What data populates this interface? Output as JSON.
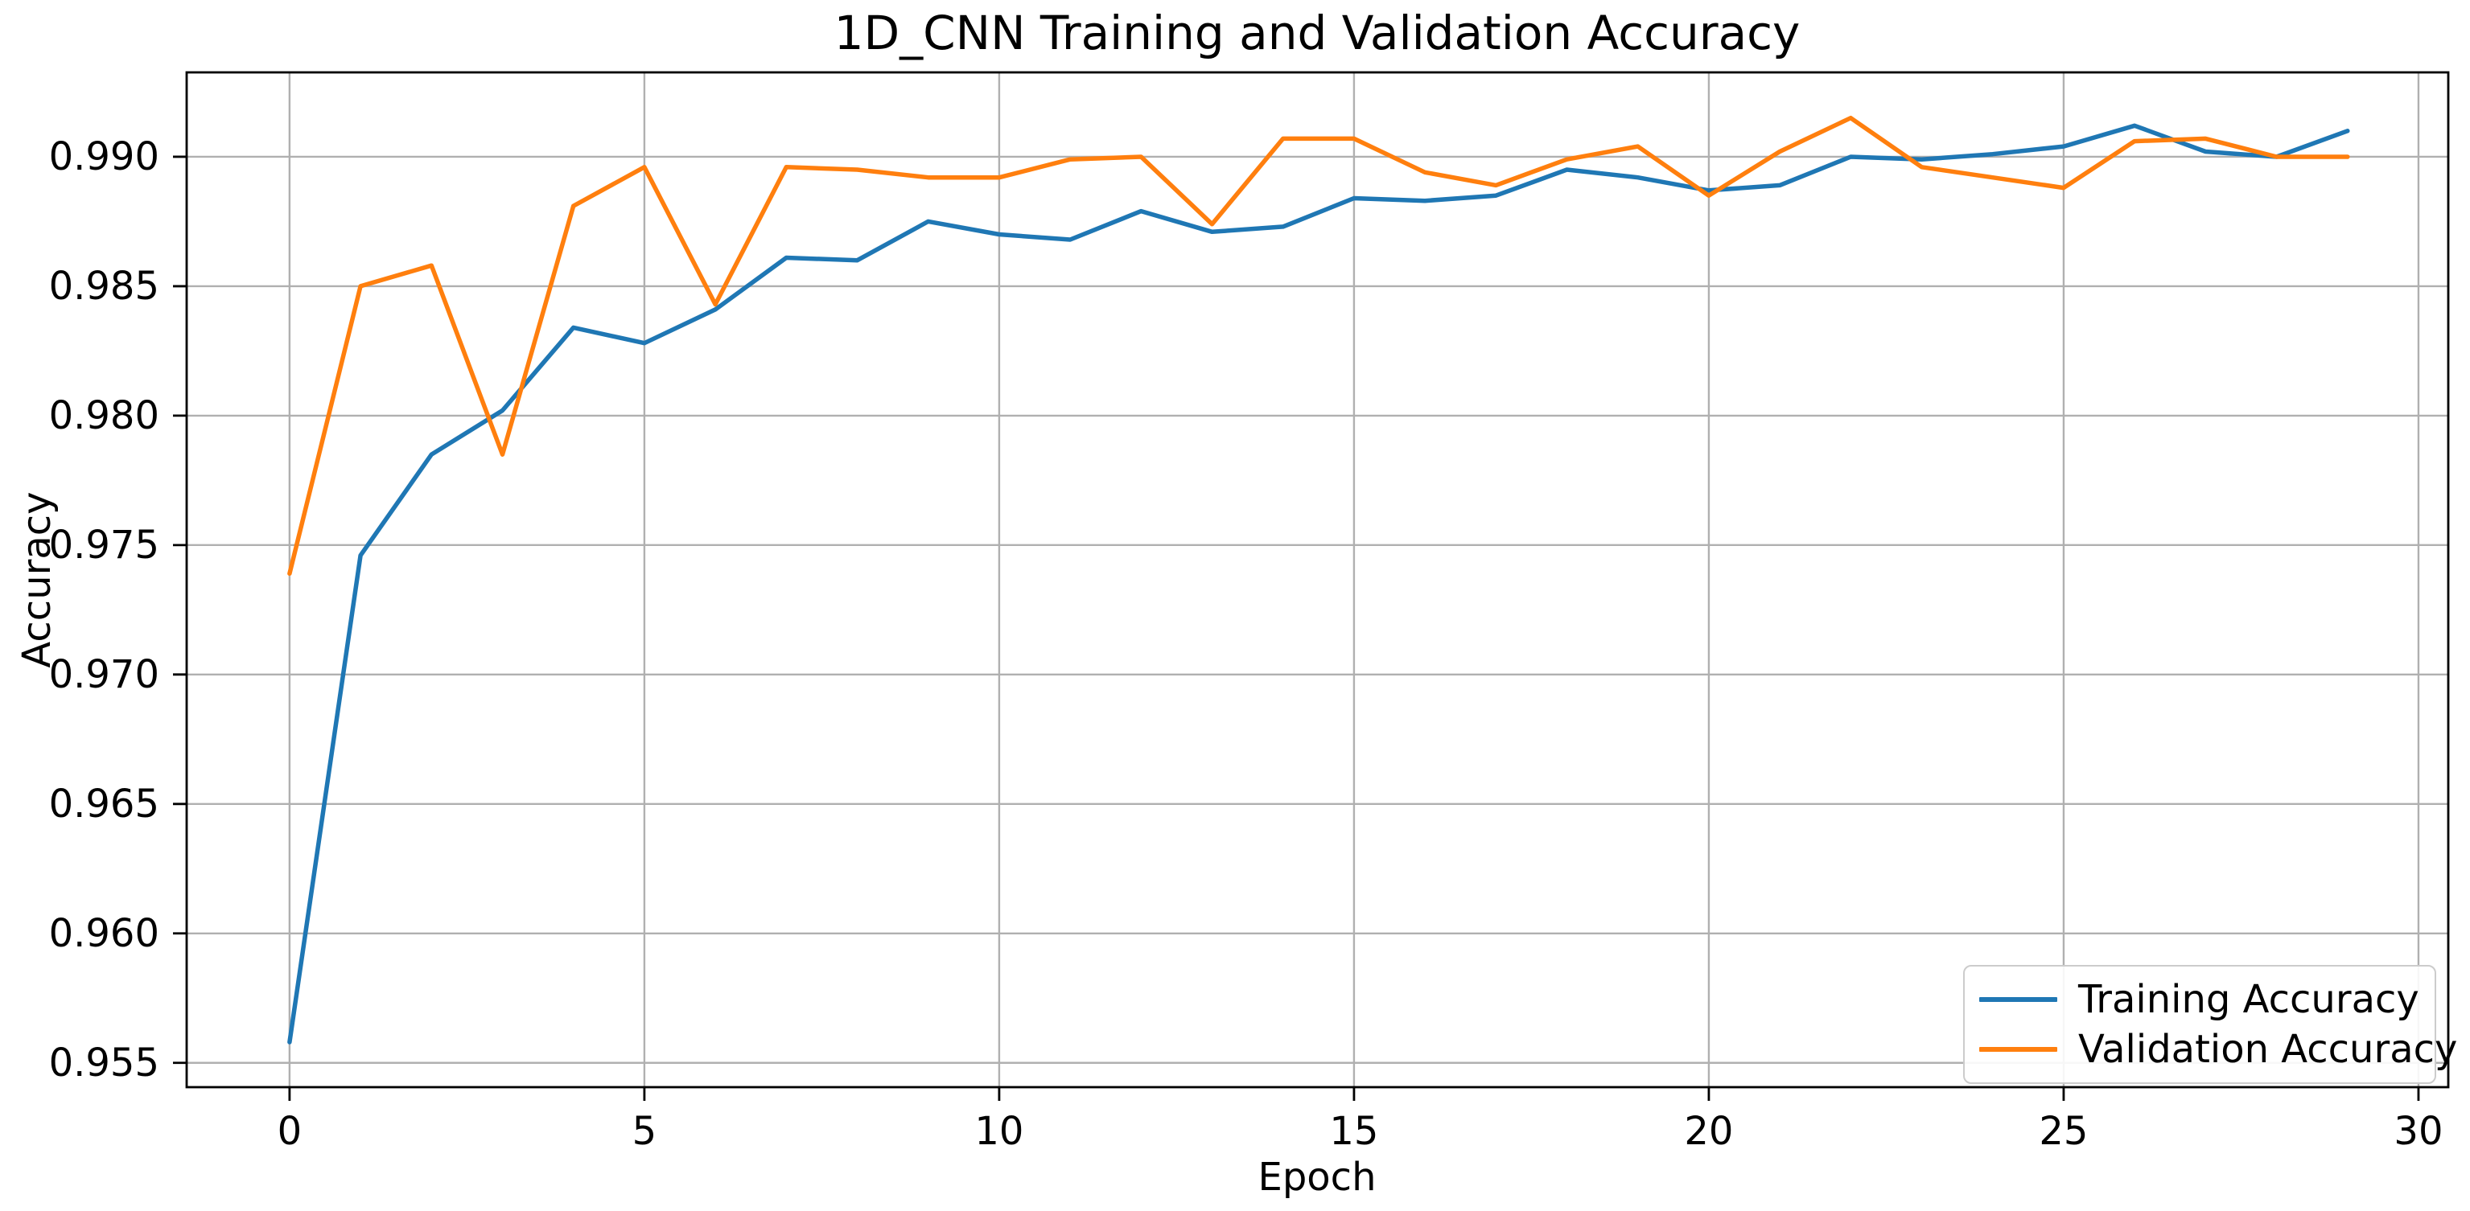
{
  "figure": {
    "background": "#ffffff"
  },
  "chart_data": {
    "type": "line",
    "title": "1D_CNN Training and Validation Accuracy",
    "xlabel": "Epoch",
    "ylabel": "Accuracy",
    "x": [
      0,
      1,
      2,
      3,
      4,
      5,
      6,
      7,
      8,
      9,
      10,
      11,
      12,
      13,
      14,
      15,
      16,
      17,
      18,
      19,
      20,
      21,
      22,
      23,
      24,
      25,
      26,
      27,
      28,
      29
    ],
    "series": [
      {
        "name": "Training Accuracy",
        "color": "#1f77b4",
        "values": [
          0.9558,
          0.9746,
          0.9785,
          0.9802,
          0.9834,
          0.9828,
          0.9841,
          0.9861,
          0.986,
          0.9875,
          0.987,
          0.9868,
          0.9879,
          0.9871,
          0.9873,
          0.9884,
          0.9883,
          0.9885,
          0.9895,
          0.9892,
          0.9887,
          0.9889,
          0.99,
          0.9899,
          0.9901,
          0.9904,
          0.9912,
          0.9902,
          0.99,
          0.991
        ]
      },
      {
        "name": "Validation Accuracy",
        "color": "#ff7f0e",
        "values": [
          0.9739,
          0.985,
          0.9858,
          0.9785,
          0.9881,
          0.9896,
          0.9843,
          0.9896,
          0.9895,
          0.9892,
          0.9892,
          0.9899,
          0.99,
          0.9874,
          0.9907,
          0.9907,
          0.9894,
          0.9889,
          0.9899,
          0.9904,
          0.9885,
          0.9902,
          0.9915,
          0.9896,
          0.9892,
          0.9888,
          0.9906,
          0.9907,
          0.99,
          0.99
        ]
      }
    ],
    "xlim": [
      -1.45,
      30.42
    ],
    "ylim": [
      0.95406,
      0.99326
    ],
    "x_ticks": [
      0,
      5,
      10,
      15,
      20,
      25,
      30
    ],
    "x_tick_labels": [
      "0",
      "5",
      "10",
      "15",
      "20",
      "25",
      "30"
    ],
    "y_ticks": [
      0.955,
      0.96,
      0.965,
      0.97,
      0.975,
      0.98,
      0.985,
      0.99
    ],
    "y_tick_labels": [
      "0.955",
      "0.960",
      "0.965",
      "0.970",
      "0.975",
      "0.980",
      "0.985",
      "0.990"
    ],
    "grid": true,
    "grid_color": "#b0b0b0",
    "spine_color": "#000000",
    "legend": {
      "position": "lower right",
      "entries": [
        "Training Accuracy",
        "Validation Accuracy"
      ]
    }
  }
}
